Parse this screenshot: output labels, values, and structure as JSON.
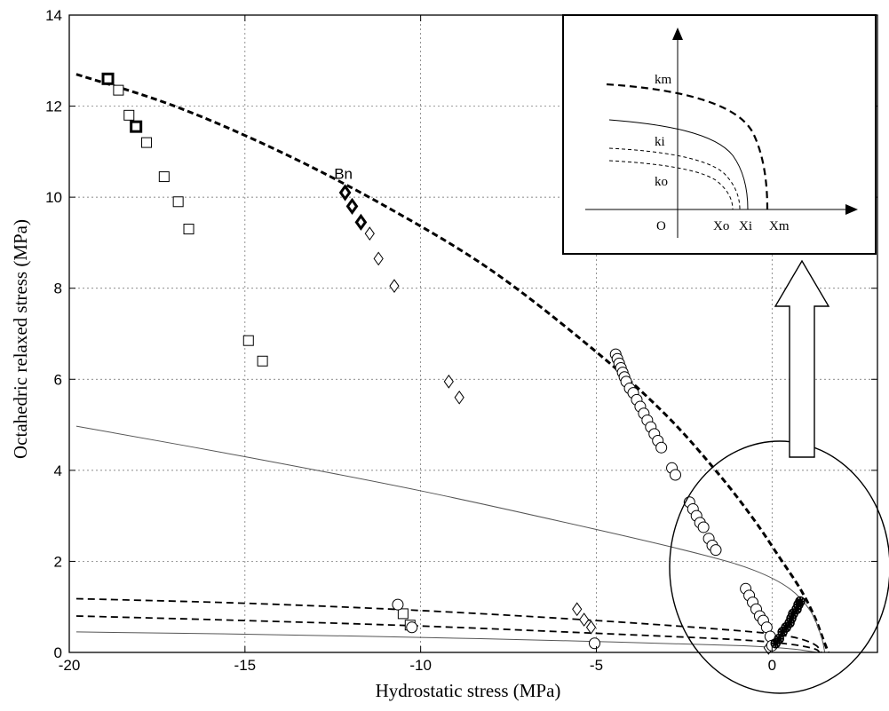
{
  "chart_data": {
    "type": "scatter",
    "title": "",
    "xlabel": "Hydrostatic stress (MPa)",
    "ylabel": "Octahedric relaxed stress (MPa)",
    "xlim": [
      -20,
      3
    ],
    "ylim": [
      0,
      14
    ],
    "xticks": [
      -20,
      -15,
      -10,
      -5,
      0
    ],
    "yticks": [
      0,
      2,
      4,
      6,
      8,
      10,
      12,
      14
    ],
    "grid": true,
    "annotations": [
      {
        "text": "Bn",
        "x": -12.2,
        "y": 10.4
      }
    ],
    "curves": [
      {
        "style": "thick-dashed",
        "points": [
          [
            -19.8,
            12.7
          ],
          [
            -17,
            12.0
          ],
          [
            -14,
            11.0
          ],
          [
            -11,
            9.8
          ],
          [
            -8,
            8.4
          ],
          [
            -5,
            6.6
          ],
          [
            -3,
            5.2
          ],
          [
            -1.5,
            3.9
          ],
          [
            -0.5,
            2.9
          ],
          [
            0.2,
            2.1
          ],
          [
            0.8,
            1.4
          ],
          [
            1.2,
            0.8
          ],
          [
            1.45,
            0.3
          ],
          [
            1.6,
            0
          ]
        ]
      },
      {
        "style": "thin-solid",
        "points": [
          [
            -19.8,
            4.97
          ],
          [
            -15,
            4.3
          ],
          [
            -10,
            3.55
          ],
          [
            -5,
            2.7
          ],
          [
            -2,
            2.15
          ],
          [
            -0.5,
            1.8
          ],
          [
            0.5,
            1.4
          ],
          [
            1.1,
            0.9
          ],
          [
            1.4,
            0.35
          ],
          [
            1.5,
            0
          ]
        ]
      },
      {
        "style": "thin-dashed",
        "points": [
          [
            -19.8,
            1.18
          ],
          [
            -15,
            1.08
          ],
          [
            -10,
            0.92
          ],
          [
            -5,
            0.7
          ],
          [
            -1,
            0.48
          ],
          [
            0.5,
            0.35
          ],
          [
            1.2,
            0.18
          ],
          [
            1.4,
            0
          ]
        ]
      },
      {
        "style": "thin-dashed",
        "points": [
          [
            -19.8,
            0.8
          ],
          [
            -15,
            0.7
          ],
          [
            -10,
            0.58
          ],
          [
            -5,
            0.42
          ],
          [
            -1,
            0.28
          ],
          [
            0.5,
            0.18
          ],
          [
            1.2,
            0.08
          ],
          [
            1.35,
            0
          ]
        ]
      },
      {
        "style": "thin-solid",
        "points": [
          [
            -19.8,
            0.45
          ],
          [
            -15,
            0.4
          ],
          [
            -10,
            0.33
          ],
          [
            -5,
            0.24
          ],
          [
            -1,
            0.15
          ],
          [
            0.5,
            0.08
          ],
          [
            1.3,
            0
          ]
        ]
      }
    ],
    "series_squares": [
      [
        -18.9,
        12.6
      ],
      [
        -18.6,
        12.35
      ],
      [
        -18.3,
        11.8
      ],
      [
        -18.1,
        11.55
      ],
      [
        -17.8,
        11.2
      ],
      [
        -17.3,
        10.45
      ],
      [
        -16.9,
        9.9
      ],
      [
        -16.6,
        9.3
      ],
      [
        -14.9,
        6.85
      ],
      [
        -14.5,
        6.4
      ],
      [
        -10.5,
        0.85
      ],
      [
        -10.3,
        0.6
      ]
    ],
    "series_squares_bold": [
      [
        -18.9,
        12.6
      ],
      [
        -18.1,
        11.55
      ]
    ],
    "series_diamonds": [
      [
        -12.15,
        10.1
      ],
      [
        -11.95,
        9.8
      ],
      [
        -11.7,
        9.45
      ],
      [
        -11.45,
        9.2
      ],
      [
        -11.2,
        8.65
      ],
      [
        -10.75,
        8.05
      ],
      [
        -9.2,
        5.95
      ],
      [
        -8.9,
        5.6
      ],
      [
        -5.55,
        0.95
      ],
      [
        -5.35,
        0.72
      ],
      [
        -5.15,
        0.55
      ],
      [
        -0.1,
        0.1
      ]
    ],
    "series_diamonds_bold": [
      [
        -12.15,
        10.1
      ],
      [
        -11.95,
        9.8
      ],
      [
        -11.7,
        9.45
      ]
    ],
    "series_circles": [
      [
        -4.45,
        6.55
      ],
      [
        -4.4,
        6.45
      ],
      [
        -4.35,
        6.35
      ],
      [
        -4.3,
        6.25
      ],
      [
        -4.25,
        6.15
      ],
      [
        -4.2,
        6.05
      ],
      [
        -4.15,
        5.95
      ],
      [
        -4.05,
        5.8
      ],
      [
        -3.95,
        5.7
      ],
      [
        -3.85,
        5.55
      ],
      [
        -3.75,
        5.4
      ],
      [
        -3.65,
        5.25
      ],
      [
        -3.55,
        5.1
      ],
      [
        -3.45,
        4.95
      ],
      [
        -3.35,
        4.8
      ],
      [
        -3.25,
        4.65
      ],
      [
        -3.15,
        4.5
      ],
      [
        -2.85,
        4.05
      ],
      [
        -2.75,
        3.9
      ],
      [
        -2.35,
        3.3
      ],
      [
        -2.25,
        3.15
      ],
      [
        -2.15,
        3.0
      ],
      [
        -2.05,
        2.85
      ],
      [
        -1.95,
        2.75
      ],
      [
        -1.8,
        2.5
      ],
      [
        -1.7,
        2.35
      ],
      [
        -1.6,
        2.25
      ],
      [
        -0.75,
        1.4
      ],
      [
        -0.65,
        1.25
      ],
      [
        -0.55,
        1.1
      ],
      [
        -0.45,
        0.95
      ],
      [
        -0.35,
        0.8
      ],
      [
        -0.25,
        0.7
      ],
      [
        -0.15,
        0.55
      ],
      [
        -0.05,
        0.35
      ],
      [
        0.0,
        0.15
      ],
      [
        -10.65,
        1.05
      ],
      [
        -10.25,
        0.55
      ],
      [
        -5.05,
        0.2
      ]
    ],
    "series_stars": [
      [
        0.1,
        0.2
      ],
      [
        0.2,
        0.3
      ],
      [
        0.3,
        0.45
      ],
      [
        0.4,
        0.55
      ],
      [
        0.5,
        0.65
      ],
      [
        0.55,
        0.75
      ],
      [
        0.6,
        0.85
      ],
      [
        0.7,
        0.95
      ],
      [
        0.75,
        1.05
      ],
      [
        0.8,
        1.12
      ]
    ],
    "inset": {
      "labels": {
        "km": "km",
        "ki": "ki",
        "ko": "ko",
        "o": "O",
        "xo": "Xo",
        "xi": "Xi",
        "xm": "Xm"
      }
    }
  }
}
